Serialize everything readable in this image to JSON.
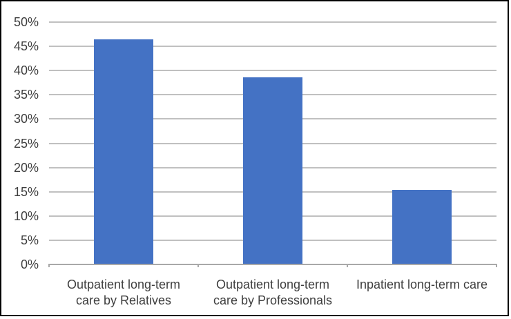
{
  "chart_data": {
    "type": "bar",
    "title": "",
    "xlabel": "",
    "ylabel": "",
    "categories": [
      "Outpatient long-term care by Relatives",
      "Outpatient long-term care by Professionals",
      "Inpatient long-term care"
    ],
    "categories_wrapped": [
      [
        "Outpatient long-term",
        "care by Relatives"
      ],
      [
        "Outpatient long-term",
        "care by Professionals"
      ],
      [
        "Inpatient long-term care"
      ]
    ],
    "values": [
      46.3,
      38.4,
      15.3
    ],
    "value_format": "percent",
    "ylim": [
      0,
      50
    ],
    "ytick_step": 5,
    "ytick_labels": [
      "0%",
      "5%",
      "10%",
      "15%",
      "20%",
      "25%",
      "30%",
      "35%",
      "40%",
      "45%",
      "50%"
    ],
    "grid": true,
    "legend": false,
    "colors": {
      "bar": "#4472C4",
      "gridline": "#C0C0C0",
      "axis": "#A9A9A9",
      "text": "#3F3F3F",
      "frame_border": "#000000",
      "background": "#FFFFFF"
    }
  }
}
